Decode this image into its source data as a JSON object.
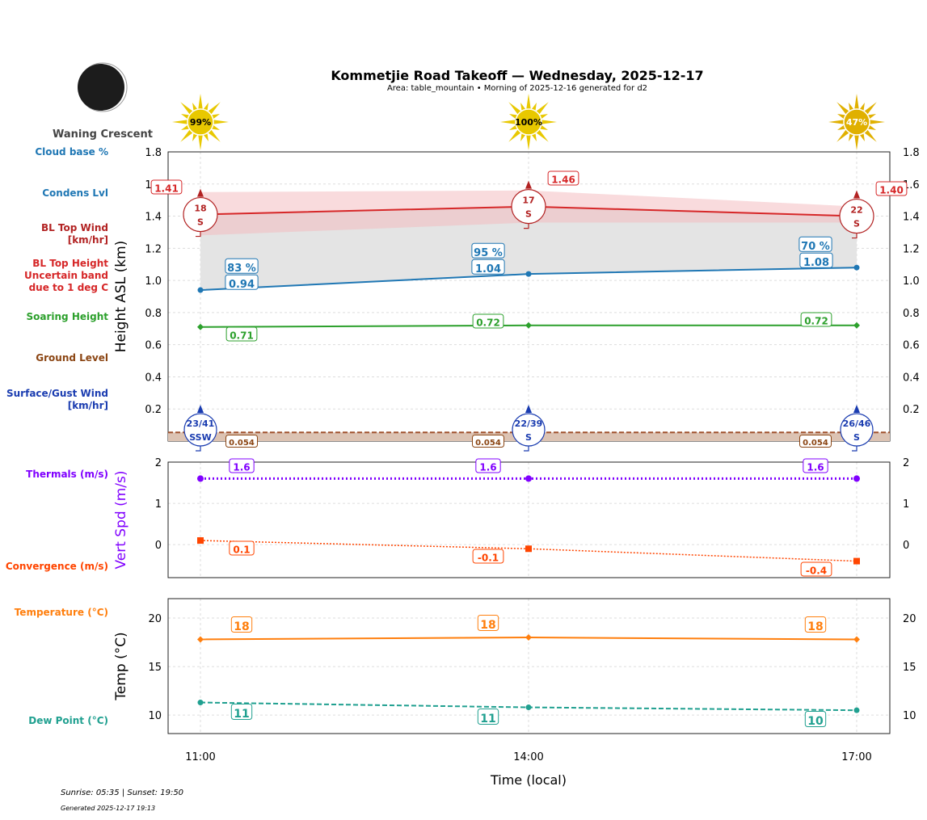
{
  "header": {
    "title": "Kommetjie Road Takeoff — Wednesday, 2025-12-17",
    "subtitle": "Area: table_mountain • Morning of 2025-12-16 generated for d2",
    "moon_phase": "Waning Crescent"
  },
  "footer": {
    "sun_times": "Sunrise: 05:35 | Sunset: 19:50",
    "generated": "Generated 2025-12-17 19:13"
  },
  "legend_labels": {
    "cloud_base": "Cloud base %",
    "condens": "Condens Lvl",
    "bl_wind": [
      "BL Top Wind",
      "[km/hr]"
    ],
    "bl_height": [
      "BL Top Height",
      "Uncertain band",
      "due to 1 deg C"
    ],
    "soaring": "Soaring Height",
    "ground": "Ground Level",
    "surface_wind": [
      "Surface/Gust Wind",
      "[km/hr]"
    ],
    "thermals": "Thermals (m/s)",
    "convergence": "Convergence (m/s)",
    "temperature": "Temperature (°C)",
    "dew_point": "Dew Point (°C)"
  },
  "colors": {
    "cloud": "#1f77b4",
    "bl_wind": "#b22222",
    "bl_height": "#d62728",
    "soaring": "#2ca02c",
    "ground": "#8b4513",
    "surface_wind": "#1a3cb0",
    "thermals": "#8000ff",
    "convergence": "#ff4500",
    "temperature": "#ff7f0e",
    "dew_point": "#20a090",
    "sun": "#e8c800",
    "sun_dim": "#e0b000"
  },
  "chart_data": [
    {
      "type": "line",
      "ylabel": "Height ASL (km)",
      "ylim": [
        0,
        1.8
      ],
      "yticks": [
        0.2,
        0.4,
        0.6,
        0.8,
        1.0,
        1.2,
        1.4,
        1.6,
        1.8
      ],
      "x": [
        "11:00",
        "14:00",
        "17:00"
      ],
      "sun_percent": [
        "99%",
        "100%",
        "47%"
      ],
      "series": {
        "bl_top_height": [
          1.41,
          1.46,
          1.4
        ],
        "bl_top_labels": [
          "1.41",
          "1.46",
          "1.40"
        ],
        "bl_band_upper": [
          1.55,
          1.56,
          1.46
        ],
        "bl_band_lower": [
          1.28,
          1.36,
          1.36
        ],
        "condens_level": [
          0.94,
          1.04,
          1.08
        ],
        "condens_labels": [
          "0.94",
          "1.04",
          "1.08"
        ],
        "cloud_base_percent": [
          "83 %",
          "95 %",
          "70 %"
        ],
        "soaring_height": [
          0.71,
          0.72,
          0.72
        ],
        "soaring_labels": [
          "0.71",
          "0.72",
          "0.72"
        ],
        "ground_level": [
          0.054,
          0.054,
          0.054
        ],
        "ground_labels": [
          "0.054",
          "0.054",
          "0.054"
        ],
        "bl_wind": [
          {
            "speed": "18",
            "dir": "S"
          },
          {
            "speed": "17",
            "dir": "S"
          },
          {
            "speed": "22",
            "dir": "S"
          }
        ],
        "surface_wind": [
          {
            "speed": "23/41",
            "dir": "SSW"
          },
          {
            "speed": "22/39",
            "dir": "S"
          },
          {
            "speed": "26/46",
            "dir": "S"
          }
        ]
      },
      "grid": true
    },
    {
      "type": "line",
      "ylabel": "Vert Spd (m/s)",
      "ylim": [
        -0.8,
        2.0
      ],
      "yticks": [
        0,
        1,
        2
      ],
      "x": [
        "11:00",
        "14:00",
        "17:00"
      ],
      "series": {
        "thermals": [
          1.6,
          1.6,
          1.6
        ],
        "thermals_labels": [
          "1.6",
          "1.6",
          "1.6"
        ],
        "convergence": [
          0.1,
          -0.1,
          -0.4
        ],
        "convergence_labels": [
          "0.1",
          "-0.1",
          "-0.4"
        ]
      },
      "grid": true
    },
    {
      "type": "line",
      "ylabel": "Temp (°C)",
      "xlabel": "Time (local)",
      "ylim": [
        8.1,
        22
      ],
      "yticks": [
        10,
        15,
        20
      ],
      "x": [
        "11:00",
        "14:00",
        "17:00"
      ],
      "series": {
        "temperature": [
          17.8,
          18.0,
          17.8
        ],
        "temperature_labels": [
          "18",
          "18",
          "18"
        ],
        "dew_point": [
          11.3,
          10.8,
          10.5
        ],
        "dew_point_labels": [
          "11",
          "11",
          "10"
        ]
      },
      "grid": true
    }
  ]
}
